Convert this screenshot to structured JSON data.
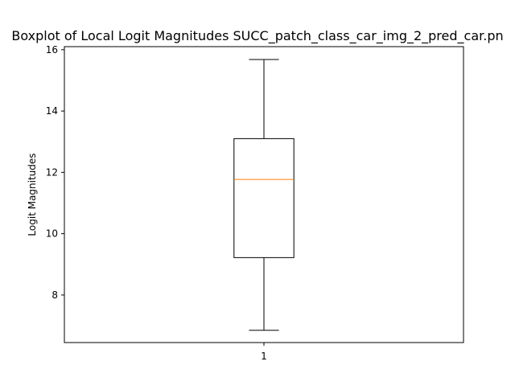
{
  "chart_data": {
    "type": "boxplot",
    "title": "Boxplot of Local Logit Magnitudes SUCC_patch_class_car_img_2_pred_car.pn",
    "ylabel": "Logit Magnitudes",
    "xlabel": "",
    "categories": [
      "1"
    ],
    "ylim": [
      6.45,
      16.1
    ],
    "yticks": [
      8,
      10,
      12,
      14,
      16
    ],
    "grid": false,
    "boxes": [
      {
        "category": "1",
        "whisker_low": 6.85,
        "q1": 9.22,
        "median": 11.77,
        "q3": 13.1,
        "whisker_high": 15.68
      }
    ],
    "colors": {
      "box": "#000000",
      "median": "#ff7f0e"
    }
  }
}
